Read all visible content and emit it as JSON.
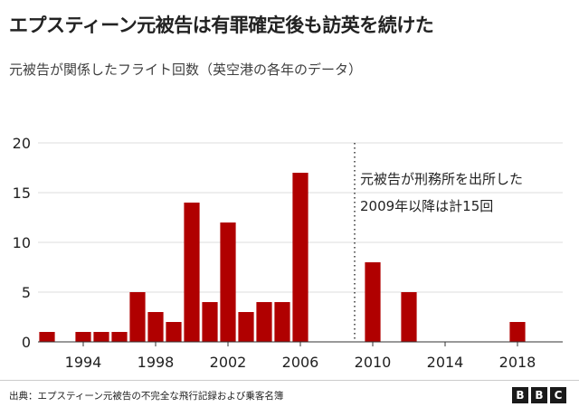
{
  "title": "エプスティーン元被告は有罪確定後も訪英を続けた",
  "subtitle": "元被告が関係したフライト回数（英空港の各年のデータ）",
  "source": "出典：エプスティーン元被告の不完全な飛行記録および乗客名簿",
  "logo": [
    "B",
    "B",
    "C"
  ],
  "chart_data": {
    "type": "bar",
    "x": [
      1992,
      1993,
      1994,
      1995,
      1996,
      1997,
      1998,
      1999,
      2000,
      2001,
      2002,
      2003,
      2004,
      2005,
      2006,
      2010,
      2012,
      2018
    ],
    "values": [
      1,
      0,
      1,
      1,
      1,
      5,
      3,
      2,
      14,
      4,
      12,
      3,
      4,
      4,
      17,
      8,
      5,
      2
    ],
    "xlim": [
      1991.5,
      2020.5
    ],
    "ylim": [
      0,
      20
    ],
    "yticks": [
      0,
      5,
      10,
      15,
      20
    ],
    "xticks": [
      1994,
      1998,
      2002,
      2006,
      2010,
      2014,
      2018
    ],
    "bar_color": "#b00000",
    "grid": "horizontal",
    "marker_line": 2009,
    "annotation": [
      "元被告が刑務所を出所した",
      "2009年以降は計15回"
    ]
  }
}
